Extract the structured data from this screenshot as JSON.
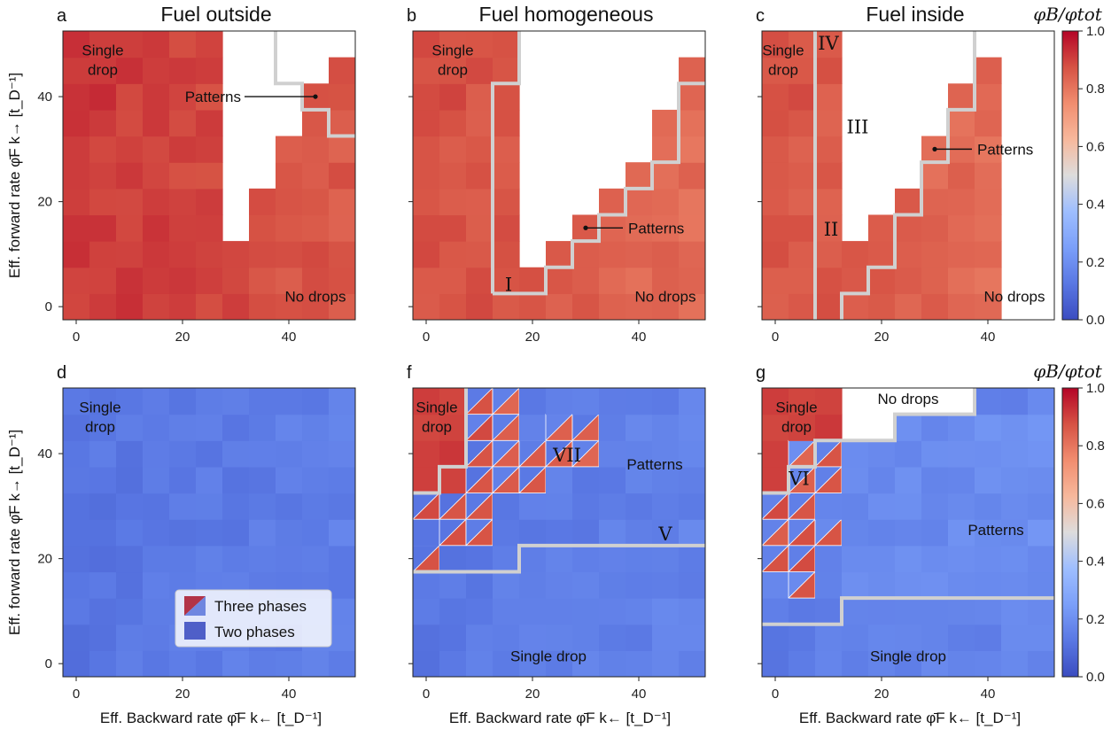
{
  "figure": {
    "x_axis_label": "Eff. Backward rate φ̄F k← [t_D⁻¹]",
    "y_axis_label": "Eff. forward rate φ̄F k→ [t_D⁻¹]",
    "colorbar_label": "φB/φtot",
    "colorbar_ticks": [
      "0.0",
      "0.2",
      "0.4",
      "0.6",
      "0.8",
      "1.0"
    ],
    "colormap": "coolwarm",
    "low_color": "#3b4cc0",
    "high_color": "#b40426",
    "legend": {
      "three_phases": "Three phases",
      "two_phases": "Two phases"
    }
  },
  "chart_data": [
    {
      "type": "heatmap",
      "panel_letter": "a",
      "title": "Fuel outside",
      "xlim": [
        -2.5,
        52.5
      ],
      "ylim": [
        -2.5,
        52.5
      ],
      "xticks": [
        0,
        20,
        40
      ],
      "yticks": [
        0,
        20,
        40
      ],
      "cell_size": 5,
      "fill_value": 0.92,
      "max_y_per_x": [
        [
          0,
          50
        ],
        [
          5,
          50
        ],
        [
          10,
          50
        ],
        [
          15,
          50
        ],
        [
          20,
          50
        ],
        [
          25,
          50
        ],
        [
          30,
          10
        ],
        [
          35,
          20
        ],
        [
          40,
          30
        ],
        [
          45,
          40
        ],
        [
          50,
          45
        ]
      ],
      "boundaries": [
        [
          [
            37.5,
            52.5
          ],
          [
            37.5,
            42.5
          ],
          [
            42.5,
            42.5
          ],
          [
            42.5,
            37.5
          ],
          [
            47.5,
            37.5
          ],
          [
            47.5,
            32.5
          ],
          [
            52.5,
            32.5
          ]
        ]
      ],
      "annotations": [
        {
          "text": "Single\ndrop",
          "x": 5,
          "y": 47,
          "style": "sans"
        },
        {
          "text": "No drops",
          "x": 45,
          "y": 2,
          "style": "sans"
        },
        {
          "text": "Patterns",
          "x": 31,
          "y": 40,
          "style": "sans",
          "arrow_to": [
            45,
            40
          ]
        }
      ]
    },
    {
      "type": "heatmap",
      "panel_letter": "b",
      "title": "Fuel homogeneous",
      "xlim": [
        -2.5,
        52.5
      ],
      "ylim": [
        -2.5,
        52.5
      ],
      "xticks": [
        0,
        20,
        40
      ],
      "yticks": [
        0,
        20,
        40
      ],
      "cell_size": 5,
      "fill_value": 0.88,
      "max_y_per_x": [
        [
          0,
          50
        ],
        [
          5,
          50
        ],
        [
          10,
          50
        ],
        [
          15,
          50
        ],
        [
          20,
          5
        ],
        [
          25,
          10
        ],
        [
          30,
          15
        ],
        [
          35,
          20
        ],
        [
          40,
          25
        ],
        [
          45,
          35
        ],
        [
          50,
          45
        ]
      ],
      "boundaries": [
        [
          [
            12.5,
            2.5
          ],
          [
            12.5,
            42.5
          ],
          [
            17.5,
            42.5
          ],
          [
            17.5,
            52.5
          ]
        ],
        [
          [
            12.5,
            2.5
          ],
          [
            17.5,
            2.5
          ],
          [
            17.5,
            2.5
          ],
          [
            22.5,
            2.5
          ],
          [
            22.5,
            7.5
          ],
          [
            27.5,
            7.5
          ],
          [
            27.5,
            12.5
          ],
          [
            32.5,
            12.5
          ],
          [
            32.5,
            17.5
          ],
          [
            37.5,
            17.5
          ],
          [
            37.5,
            22.5
          ],
          [
            42.5,
            22.5
          ],
          [
            42.5,
            27.5
          ],
          [
            47.5,
            27.5
          ],
          [
            47.5,
            42.5
          ],
          [
            52.5,
            42.5
          ]
        ]
      ],
      "annotations": [
        {
          "text": "Single\ndrop",
          "x": 5,
          "y": 47,
          "style": "sans"
        },
        {
          "text": "No drops",
          "x": 45,
          "y": 2,
          "style": "sans"
        },
        {
          "text": "Patterns",
          "x": 38,
          "y": 15,
          "style": "sans",
          "arrow_to": [
            30,
            15
          ]
        },
        {
          "text": "I",
          "x": 15.5,
          "y": 4,
          "style": "serif"
        }
      ]
    },
    {
      "type": "heatmap",
      "panel_letter": "c",
      "title": "Fuel inside",
      "xlim": [
        -2.5,
        52.5
      ],
      "ylim": [
        -2.5,
        52.5
      ],
      "xticks": [
        0,
        20,
        40
      ],
      "yticks": [
        0,
        20,
        40
      ],
      "cell_size": 5,
      "fill_value": 0.87,
      "max_y_per_x": [
        [
          0,
          50
        ],
        [
          5,
          50
        ],
        [
          10,
          50
        ],
        [
          15,
          10
        ],
        [
          20,
          15
        ],
        [
          25,
          20
        ],
        [
          30,
          30
        ],
        [
          35,
          40
        ],
        [
          40,
          45
        ],
        [
          45,
          -5
        ],
        [
          50,
          -5
        ]
      ],
      "boundaries": [
        [
          [
            7.5,
            -2.5
          ],
          [
            7.5,
            52.5
          ]
        ],
        [
          [
            12.5,
            -2.5
          ],
          [
            12.5,
            2.5
          ],
          [
            17.5,
            2.5
          ],
          [
            17.5,
            7.5
          ],
          [
            22.5,
            7.5
          ],
          [
            22.5,
            17.5
          ],
          [
            27.5,
            17.5
          ],
          [
            27.5,
            27.5
          ],
          [
            32.5,
            27.5
          ],
          [
            32.5,
            37.5
          ],
          [
            37.5,
            37.5
          ],
          [
            37.5,
            52.5
          ]
        ]
      ],
      "annotations": [
        {
          "text": "Single\ndrop",
          "x": 1.5,
          "y": 47,
          "style": "sans"
        },
        {
          "text": "No drops",
          "x": 45,
          "y": 2,
          "style": "sans"
        },
        {
          "text": "Patterns",
          "x": 38,
          "y": 30,
          "style": "sans",
          "arrow_to": [
            30,
            30
          ]
        },
        {
          "text": "IV",
          "x": 10,
          "y": 50,
          "style": "serif"
        },
        {
          "text": "III",
          "x": 15.5,
          "y": 34,
          "style": "serif"
        },
        {
          "text": "II",
          "x": 10.5,
          "y": 14.5,
          "style": "serif"
        }
      ]
    },
    {
      "type": "heatmap",
      "panel_letter": "d",
      "title": "",
      "xlim": [
        -2.5,
        52.5
      ],
      "ylim": [
        -2.5,
        52.5
      ],
      "xticks": [
        0,
        20,
        40
      ],
      "yticks": [
        0,
        20,
        40
      ],
      "cell_size": 5,
      "fill_value": 0.12,
      "boundaries": [],
      "annotations": [
        {
          "text": "Single\ndrop",
          "x": 4.5,
          "y": 47,
          "style": "sans"
        }
      ],
      "legend": true
    },
    {
      "type": "heatmap",
      "panel_letter": "f",
      "title": "",
      "xlim": [
        -2.5,
        52.5
      ],
      "ylim": [
        -2.5,
        52.5
      ],
      "xticks": [
        0,
        20,
        40
      ],
      "yticks": [
        0,
        20,
        40
      ],
      "cell_size": 5,
      "fill_value": 0.13,
      "red_cells": [
        [
          0,
          35
        ],
        [
          0,
          40
        ],
        [
          0,
          45
        ],
        [
          0,
          50
        ],
        [
          5,
          35
        ],
        [
          5,
          40
        ],
        [
          5,
          45
        ],
        [
          5,
          50
        ]
      ],
      "three_phase_cells": [
        [
          0,
          20
        ],
        [
          0,
          30
        ],
        [
          5,
          25
        ],
        [
          5,
          30
        ],
        [
          10,
          25
        ],
        [
          10,
          30
        ],
        [
          10,
          35
        ],
        [
          10,
          40
        ],
        [
          10,
          45
        ],
        [
          10,
          50
        ],
        [
          15,
          35
        ],
        [
          15,
          40
        ],
        [
          15,
          45
        ],
        [
          15,
          50
        ],
        [
          20,
          35
        ],
        [
          20,
          40
        ],
        [
          25,
          40
        ],
        [
          25,
          45
        ],
        [
          30,
          40
        ],
        [
          30,
          45
        ]
      ],
      "boundaries": [
        [
          [
            -2.5,
            32.5
          ],
          [
            2.5,
            32.5
          ],
          [
            2.5,
            37.5
          ],
          [
            7.5,
            37.5
          ],
          [
            7.5,
            52.5
          ]
        ],
        [
          [
            -2.5,
            17.5
          ],
          [
            17.5,
            17.5
          ],
          [
            17.5,
            22.5
          ],
          [
            52.5,
            22.5
          ]
        ]
      ],
      "annotations": [
        {
          "text": "Single\ndrop",
          "x": 2,
          "y": 47,
          "style": "sans"
        },
        {
          "text": "Patterns",
          "x": 43,
          "y": 38,
          "style": "sans"
        },
        {
          "text": "Single drop",
          "x": 23,
          "y": 1.5,
          "style": "sans"
        },
        {
          "text": "VII",
          "x": 26.5,
          "y": 39.5,
          "style": "serif"
        },
        {
          "text": "V",
          "x": 45,
          "y": 24.5,
          "style": "serif"
        }
      ]
    },
    {
      "type": "heatmap",
      "panel_letter": "g",
      "title": "",
      "xlim": [
        -2.5,
        52.5
      ],
      "ylim": [
        -2.5,
        52.5
      ],
      "xticks": [
        0,
        20,
        40
      ],
      "yticks": [
        0,
        20,
        40
      ],
      "cell_size": 5,
      "fill_value": 0.14,
      "red_cells": [
        [
          0,
          35
        ],
        [
          0,
          40
        ],
        [
          0,
          45
        ],
        [
          0,
          50
        ],
        [
          5,
          45
        ],
        [
          5,
          50
        ],
        [
          10,
          45
        ],
        [
          10,
          50
        ]
      ],
      "white_cells": [
        [
          15,
          45
        ],
        [
          15,
          50
        ],
        [
          20,
          45
        ],
        [
          20,
          50
        ],
        [
          25,
          50
        ],
        [
          30,
          50
        ],
        [
          35,
          50
        ]
      ],
      "three_phase_cells": [
        [
          0,
          20
        ],
        [
          0,
          25
        ],
        [
          0,
          30
        ],
        [
          5,
          15
        ],
        [
          5,
          20
        ],
        [
          5,
          25
        ],
        [
          5,
          30
        ],
        [
          5,
          35
        ],
        [
          5,
          40
        ],
        [
          10,
          35
        ],
        [
          10,
          40
        ],
        [
          10,
          25
        ]
      ],
      "boundaries": [
        [
          [
            -2.5,
            32.5
          ],
          [
            2.5,
            32.5
          ],
          [
            2.5,
            37.5
          ],
          [
            7.5,
            37.5
          ],
          [
            7.5,
            42.5
          ],
          [
            22.5,
            42.5
          ],
          [
            22.5,
            47.5
          ],
          [
            37.5,
            47.5
          ],
          [
            37.5,
            52.5
          ]
        ],
        [
          [
            -2.5,
            7.5
          ],
          [
            12.5,
            7.5
          ],
          [
            12.5,
            12.5
          ],
          [
            52.5,
            12.5
          ]
        ]
      ],
      "annotations": [
        {
          "text": "Single\ndrop",
          "x": 4,
          "y": 47,
          "style": "sans"
        },
        {
          "text": "No drops",
          "x": 25,
          "y": 50.5,
          "style": "sans"
        },
        {
          "text": "Patterns",
          "x": 41.5,
          "y": 25.5,
          "style": "sans"
        },
        {
          "text": "Single drop",
          "x": 25,
          "y": 1.5,
          "style": "sans"
        },
        {
          "text": "VI",
          "x": 4.5,
          "y": 35,
          "style": "serif"
        }
      ]
    }
  ]
}
